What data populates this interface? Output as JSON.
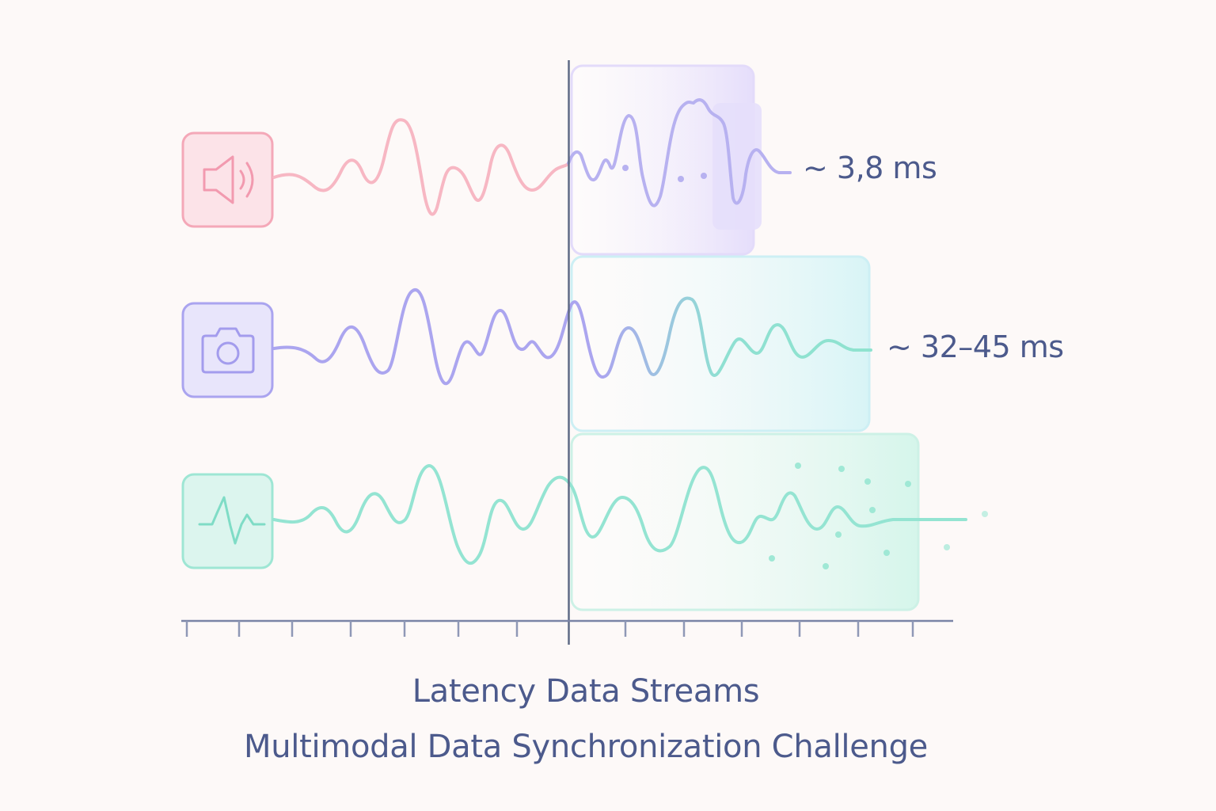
{
  "title": "Latency Data Streams",
  "subtitle": "Multimodal Data Synchronization Challenge",
  "colors": {
    "background": "#fdf9f8",
    "text": "#4c5a8c",
    "axis": "#5f6a86",
    "audio": "#f4a6b6",
    "video": "#a9a3ee",
    "sensor": "#8fe3cf",
    "latency_zone_audio": "#e9e3fb",
    "latency_zone_video": "#d9f5f7",
    "latency_zone_sensor": "#d8f6ee"
  },
  "streams": [
    {
      "id": "audio",
      "icon": "speaker-icon",
      "latency_label": "~ 3,8 ms"
    },
    {
      "id": "video",
      "icon": "camera-icon",
      "latency_label": "~ 32–45 ms"
    },
    {
      "id": "sensor",
      "icon": "pulse-icon",
      "latency_label": ""
    }
  ]
}
